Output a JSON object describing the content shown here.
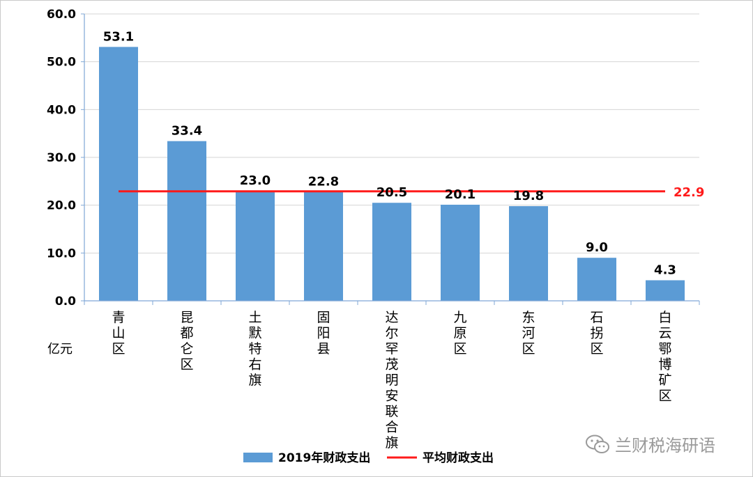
{
  "chart_data": {
    "type": "bar",
    "categories": [
      "青山区",
      "昆都仑区",
      "土默特右旗",
      "固阳县",
      "达尔罕茂明安联合旗",
      "九原区",
      "东河区",
      "石拐区",
      "白云鄂博矿区"
    ],
    "series": [
      {
        "name": "2019年财政支出",
        "values": [
          53.1,
          33.4,
          23.0,
          22.8,
          20.5,
          20.1,
          19.8,
          9.0,
          4.3
        ],
        "color": "#5b9bd5"
      }
    ],
    "value_labels": [
      "53.1",
      "33.4",
      "23.0",
      "22.8",
      "20.5",
      "20.1",
      "19.8",
      "9.0",
      "4.3"
    ],
    "reference_line": {
      "name": "平均财政支出",
      "value": 22.9,
      "label": "22.9",
      "color": "#ff1a1a"
    },
    "ylabel": "亿元",
    "ylim": [
      0,
      60
    ],
    "yticks": [
      "0.0",
      "10.0",
      "20.0",
      "30.0",
      "40.0",
      "50.0",
      "60.0"
    ],
    "grid": true,
    "legend_position": "bottom-center"
  },
  "watermark": {
    "text": "兰财税海研语",
    "icon": "wechat-icon"
  }
}
